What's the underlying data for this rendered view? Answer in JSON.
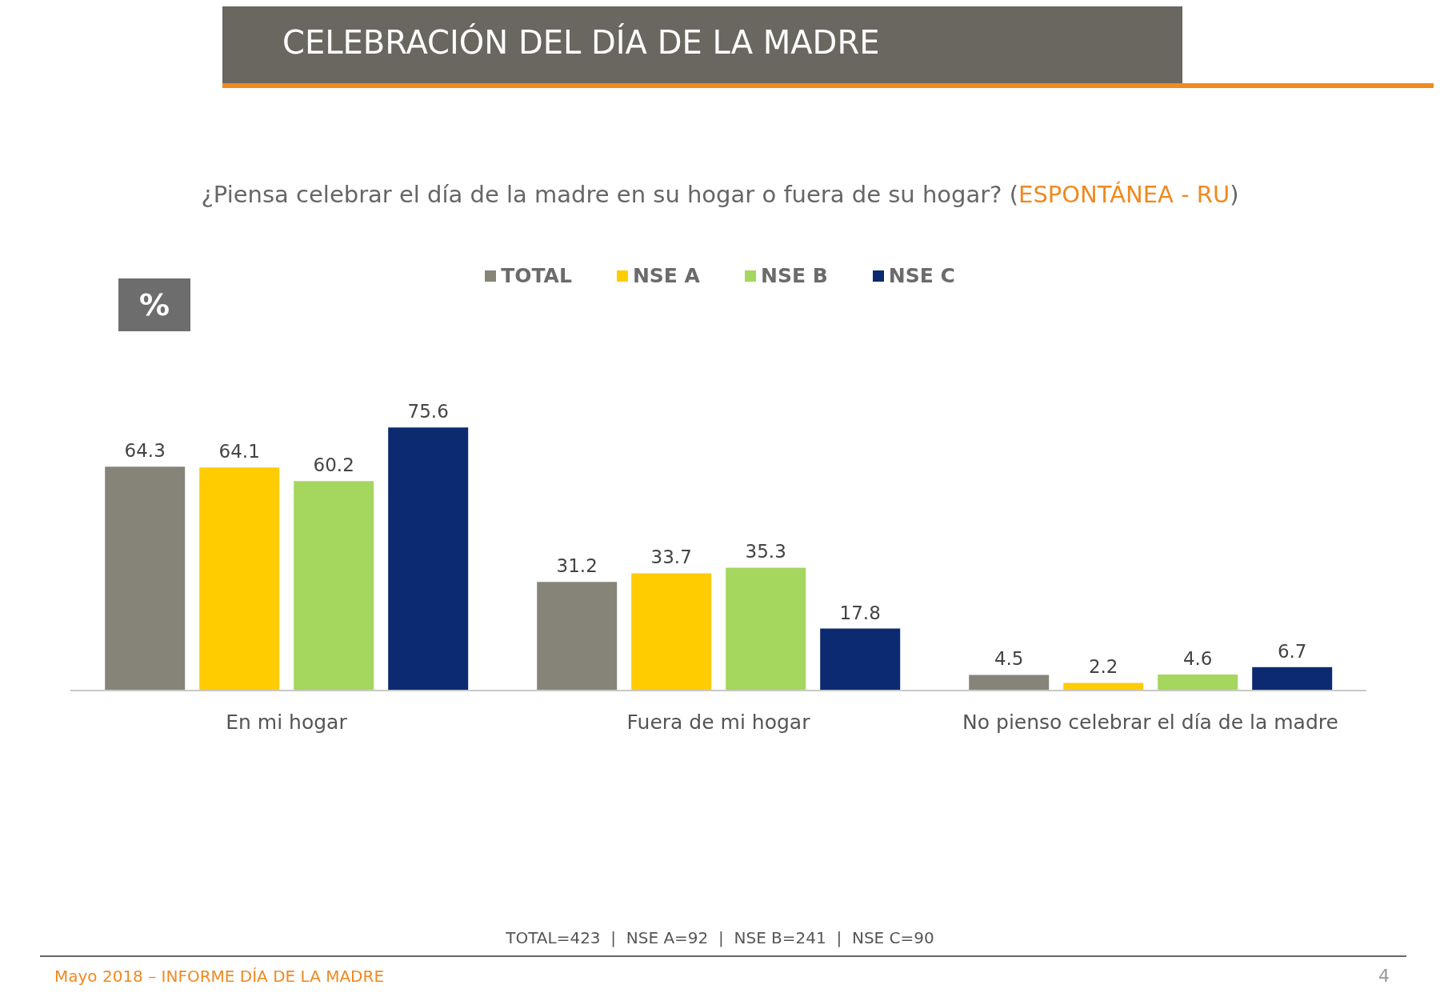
{
  "chart_data": {
    "type": "bar",
    "title": "CELEBRACIÓN DEL DÍA DE LA MADRE",
    "subtitle": "¿Piensa celebrar el día de la madre en su hogar o fuera de su hogar? (ESPONTÁNEA - RU)",
    "ylabel": "%",
    "categories": [
      "En mi  hogar",
      "Fuera de mi hogar",
      "No pienso celebrar el día de la madre"
    ],
    "series": [
      {
        "name": "TOTAL",
        "color": "#868478",
        "values": [
          64.3,
          31.2,
          4.5
        ]
      },
      {
        "name": "NSE A",
        "color": "#ffcc00",
        "values": [
          64.1,
          33.7,
          2.2
        ]
      },
      {
        "name": "NSE B",
        "color": "#a5d65e",
        "values": [
          60.2,
          35.3,
          4.6
        ]
      },
      {
        "name": "NSE C",
        "color": "#0b2a6f",
        "values": [
          75.6,
          17.8,
          6.7
        ]
      }
    ],
    "data_labels": true,
    "legend": "top",
    "grid": false,
    "annotations": [
      "TOTAL=423  |  NSE A=92  |  NSE B=241  |  NSE C=90",
      "Mayo 2018 – INFORME DÍA DE LA MADRE",
      "4"
    ]
  }
}
